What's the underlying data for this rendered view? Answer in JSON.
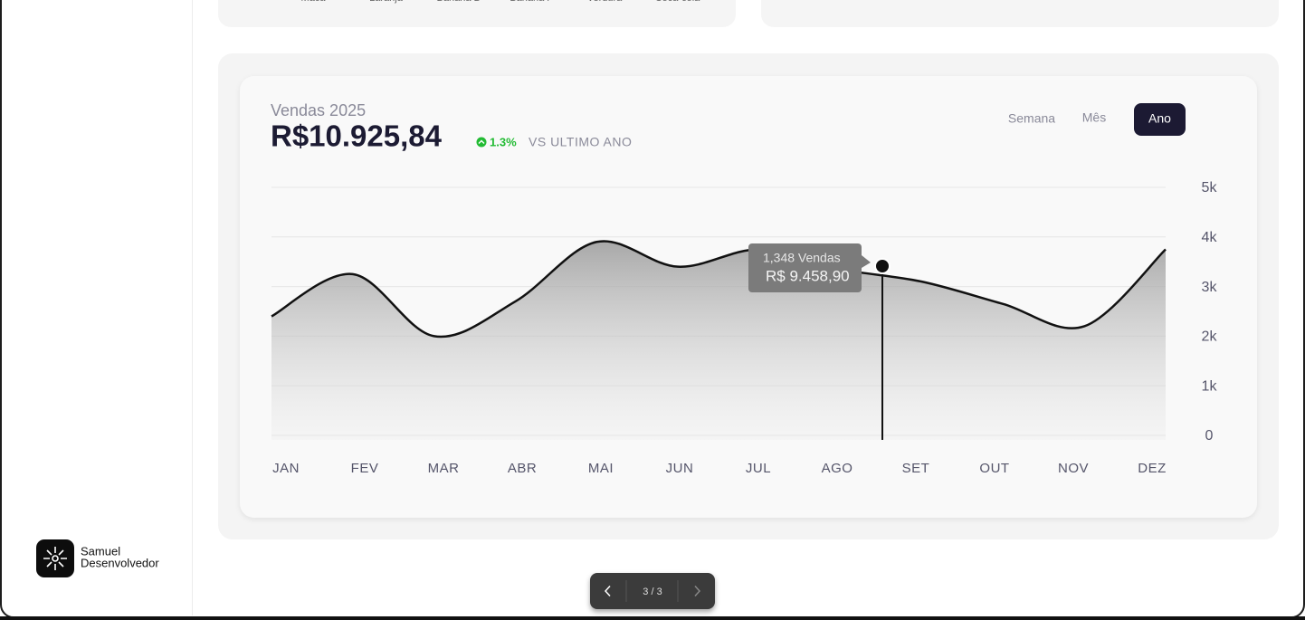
{
  "sidebar": {
    "brand": [
      "Samuel",
      "Desenvolvedor"
    ]
  },
  "top_card": {
    "labels": [
      "Maca",
      "Laranja",
      "Banana D",
      "Banana P",
      "Verdura",
      "Coca-cola"
    ]
  },
  "header": {
    "title": "Vendas 2025",
    "total": "R$10.925,84",
    "change": "1.3%",
    "change_label": "VS ULTIMO ANO",
    "periods": [
      "Semana",
      "Mês",
      "Ano"
    ]
  },
  "tooltip": {
    "count": "1,348 Vendas",
    "amount": "R$ 9.458,90"
  },
  "pagination": "3 / 3",
  "chart_data": {
    "type": "line",
    "categories": [
      "JAN",
      "FEV",
      "MAR",
      "ABR",
      "MAI",
      "JUN",
      "JUL",
      "AGO",
      "SET",
      "OUT",
      "NOV",
      "DEZ"
    ],
    "series": [
      {
        "name": "Vendas",
        "color": "#111111",
        "values": [
          2400,
          3250,
          2000,
          2700,
          3900,
          3400,
          3750,
          3350,
          3100,
          2650,
          2200,
          3750
        ]
      }
    ],
    "ylim": [
      0,
      5000
    ],
    "yticks": [
      0,
      {
        "value": 1000,
        "label": "1k"
      },
      {
        "value": 2000,
        "label": "2k"
      },
      {
        "value": 3000,
        "label": "3k"
      },
      {
        "value": 4000,
        "label": "4k"
      },
      {
        "value": 5000,
        "label": "5k"
      }
    ],
    "grid": true
  }
}
